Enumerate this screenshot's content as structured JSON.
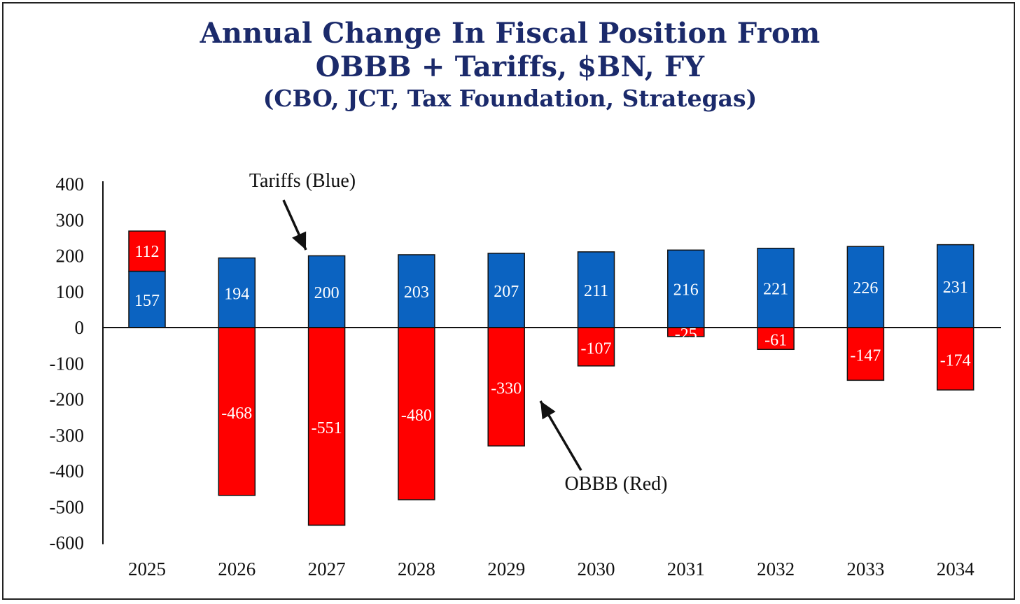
{
  "chart_data": {
    "type": "bar",
    "stacked": true,
    "title_lines": [
      "Annual Change In Fiscal Position From",
      "OBBB + Tariffs, $BN, FY"
    ],
    "subtitle": "(CBO, JCT, Tax Foundation, Strategas)",
    "categories": [
      "2025",
      "2026",
      "2027",
      "2028",
      "2029",
      "2030",
      "2031",
      "2032",
      "2033",
      "2034"
    ],
    "series": [
      {
        "values": [
          157,
          194,
          200,
          203,
          207,
          211,
          216,
          221,
          226,
          231
        ],
        "color": "#0b63c1"
      },
      {
        "values": [
          112,
          -468,
          -551,
          -480,
          -330,
          -107,
          -25,
          -61,
          -147,
          -174
        ],
        "color": "#ff0000"
      }
    ],
    "yticks": [
      400,
      300,
      200,
      100,
      0,
      -100,
      -200,
      -300,
      -400,
      -500,
      -600
    ],
    "ylim": [
      -600,
      400
    ],
    "annotations": [
      {
        "text": "Tariffs (Blue)"
      },
      {
        "text": "OBBB (Red)"
      }
    ],
    "grid": false,
    "legend": "none"
  }
}
